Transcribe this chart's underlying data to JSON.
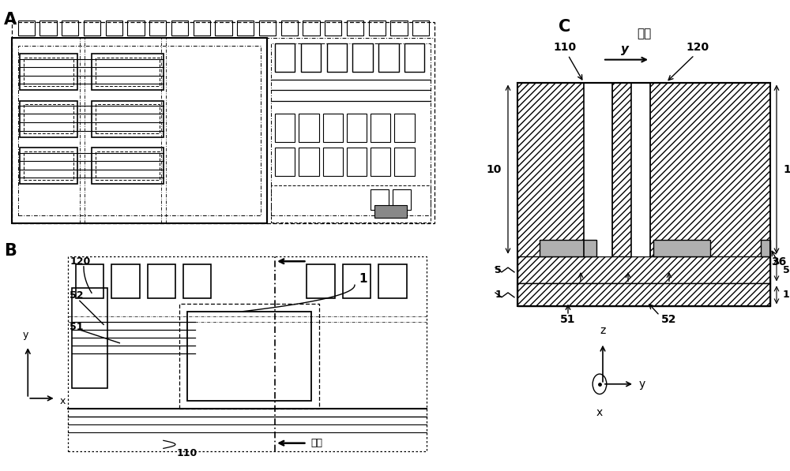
{
  "bg_color": "#ffffff",
  "label_A": "A",
  "label_B": "B",
  "label_C": "C",
  "text_section": "截面",
  "text_cutline": "截线",
  "label_110": "110",
  "label_120": "120",
  "label_52": "52",
  "label_51": "51",
  "label_1": "1",
  "label_5": "5",
  "label_10": "10",
  "label_36": "36"
}
